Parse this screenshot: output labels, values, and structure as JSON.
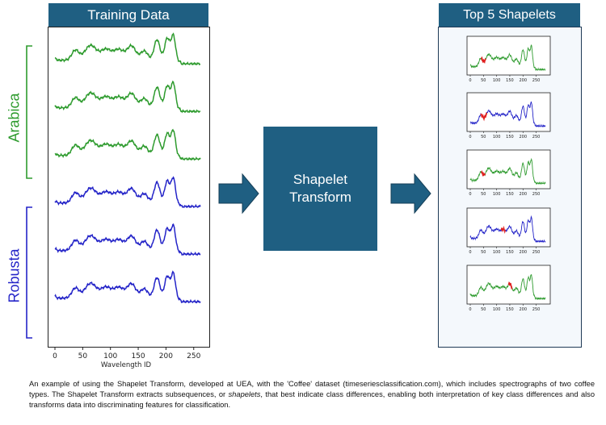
{
  "training": {
    "header": "Training Data",
    "xlabel": "Wavelength ID",
    "ticks": [
      "0",
      "50",
      "100",
      "150",
      "200",
      "250"
    ],
    "series": [
      {
        "class": "Arabica",
        "color": "#2e9b2e"
      },
      {
        "class": "Arabica",
        "color": "#2e9b2e"
      },
      {
        "class": "Arabica",
        "color": "#2e9b2e"
      },
      {
        "class": "Robusta",
        "color": "#2424c8"
      },
      {
        "class": "Robusta",
        "color": "#2424c8"
      },
      {
        "class": "Robusta",
        "color": "#2424c8"
      }
    ]
  },
  "labels": {
    "arabica": "Arabica",
    "robusta": "Robusta",
    "arabica_color": "#2e9b2e",
    "robusta_color": "#2424c8"
  },
  "transform": {
    "label": "Shapelet\nTransform",
    "color": "#1f5f82"
  },
  "shapelets": {
    "header": "Top 5 Shapelets",
    "ticks": [
      "0",
      "50",
      "100",
      "150",
      "200",
      "250"
    ],
    "highlight_color": "#e02020",
    "items": [
      {
        "color": "#2e9b2e",
        "shapelet_start": 42,
        "shapelet_end": 58
      },
      {
        "color": "#2424c8",
        "shapelet_start": 40,
        "shapelet_end": 62
      },
      {
        "color": "#2e9b2e",
        "shapelet_start": 42,
        "shapelet_end": 56
      },
      {
        "color": "#2424c8",
        "shapelet_start": 118,
        "shapelet_end": 132
      },
      {
        "color": "#2e9b2e",
        "shapelet_start": 145,
        "shapelet_end": 158
      }
    ]
  },
  "caption": {
    "part1": "An example of using the Shapelet Transform, developed at UEA, with the 'Coffee' dataset (timeseriesclassification.com), which includes spectrographs of two coffee types. The Shapelet Transform extracts subsequences, or ",
    "italic": "shapelets",
    "part2": ", that best indicate class differences, enabling both interpretation of key class differences and also transforms data into discriminating features for classification."
  }
}
